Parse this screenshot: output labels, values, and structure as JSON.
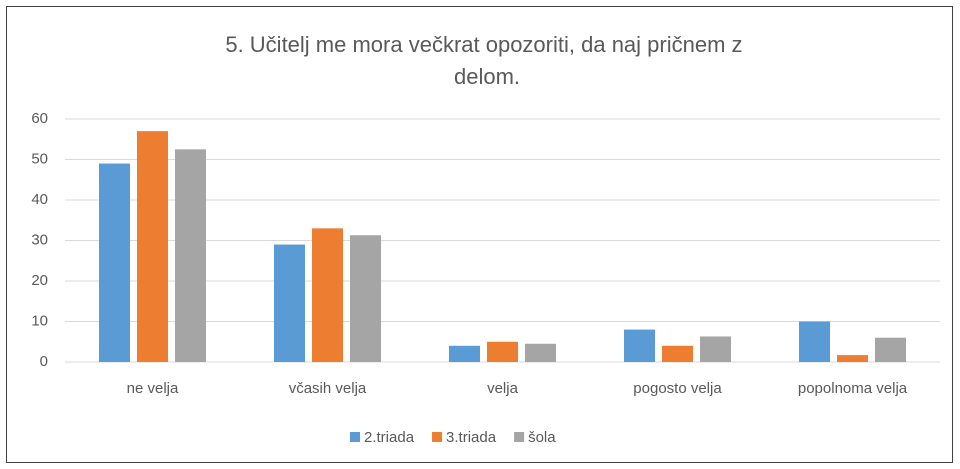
{
  "chart_data": {
    "type": "bar",
    "title": "5. Učitelj me mora večkrat opozoriti, da naj pričnem z delom.",
    "categories": [
      "ne velja",
      "včasih velja",
      "velja",
      "pogosto velja",
      "popolnoma velja"
    ],
    "series": [
      {
        "name": "2.triada",
        "color": "#5b9bd5",
        "values": [
          49,
          29,
          4,
          8,
          10
        ]
      },
      {
        "name": "3.triada",
        "color": "#ed7d31",
        "values": [
          57,
          33,
          5,
          4,
          1.7
        ]
      },
      {
        "name": "šola",
        "color": "#a5a5a5",
        "values": [
          52.5,
          31.3,
          4.5,
          6.3,
          6
        ]
      }
    ],
    "ylim": [
      0,
      60
    ],
    "yticks": [
      0,
      10,
      20,
      30,
      40,
      50,
      60
    ],
    "grid": true,
    "legend": "bottom"
  }
}
